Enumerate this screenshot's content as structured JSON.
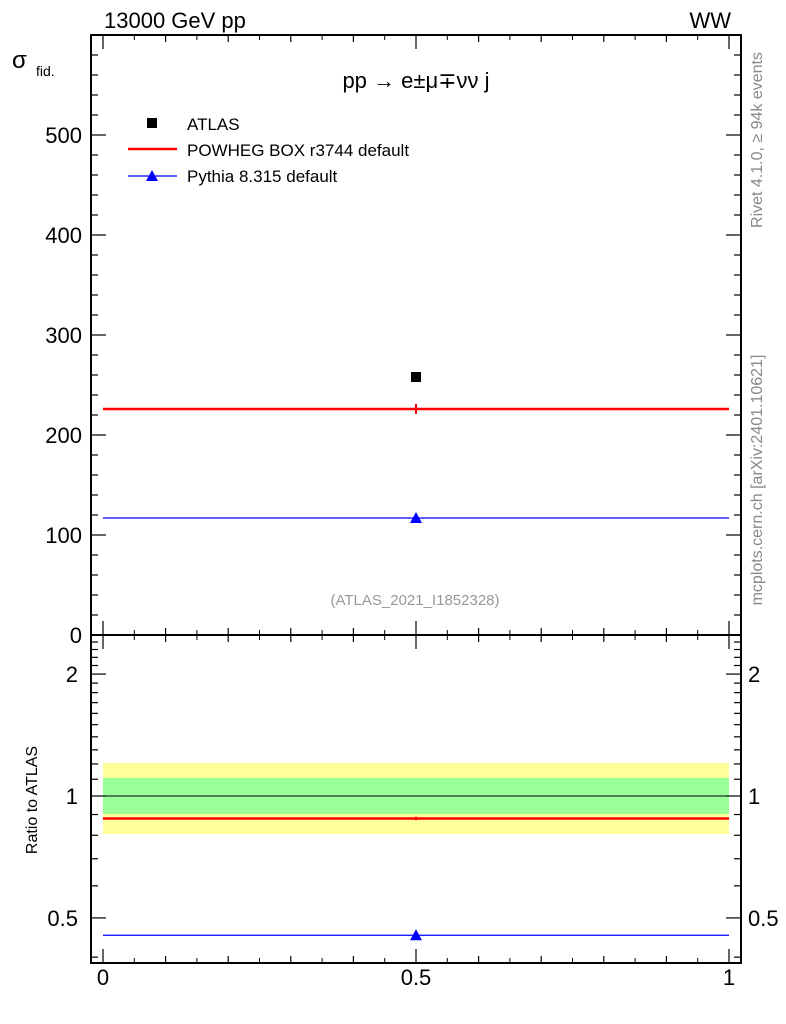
{
  "chart_data": {
    "type": "scatter",
    "header_left": "13000 GeV pp",
    "header_right": "WW",
    "title": "pp →  e±μ∓νν j",
    "ylabel": "σ",
    "ylabel_sub": "fid.",
    "ratio_ylabel": "Ratio to ATLAS",
    "analysis_label": "(ATLAS_2021_I1852328)",
    "side_label_top": "Rivet 4.1.0, ≥ 94k events",
    "side_label_bottom": "mcplots.cern.ch [arXiv:2401.10621]",
    "xlim": [
      -0.02,
      1.02
    ],
    "ylim": [
      0,
      600
    ],
    "ratio_ylim": [
      0.387,
      2.5
    ],
    "ratio_scale": "log",
    "xticks": [
      "0",
      "0.5",
      "1"
    ],
    "yticks": [
      "0",
      "100",
      "200",
      "300",
      "400",
      "500"
    ],
    "ratio_yticks": [
      "0.5",
      "1",
      "2"
    ],
    "legend_placement": "top-left",
    "series": [
      {
        "name": "ATLAS",
        "marker": "square",
        "color": "#000000",
        "x": 0.5,
        "y": 258,
        "ratio_band_inner": [
          0.903,
          1.108
        ],
        "ratio_band_outer": [
          0.806,
          1.206
        ]
      },
      {
        "name": "POWHEG BOX r3744 default",
        "marker": "line",
        "color": "#ff0000",
        "x": 0.5,
        "y": 226,
        "yerr": 5,
        "ratio": 0.88,
        "ratio_err": 0.018
      },
      {
        "name": "Pythia 8.315 default",
        "marker": "triangle",
        "color": "#0000ff",
        "x": 0.5,
        "y": 117,
        "ratio": 0.453
      }
    ]
  }
}
